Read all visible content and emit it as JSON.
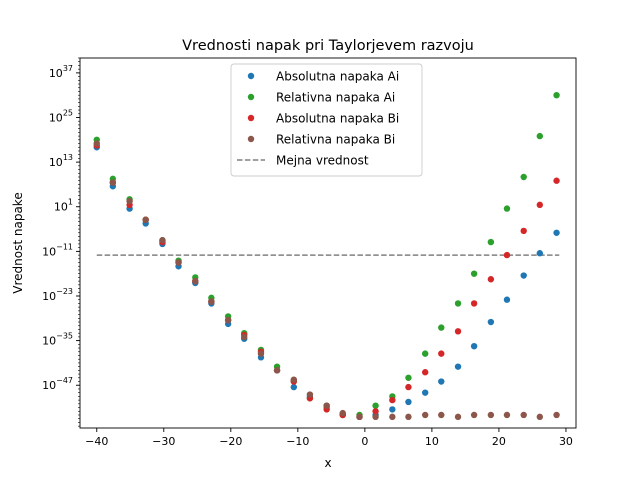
{
  "chart_data": {
    "type": "scatter",
    "title": "Vrednosti napak pri Taylorjevem razvoju",
    "xlabel": "x",
    "ylabel": "Vrednost napake",
    "yscale": "log",
    "xlim": [
      -42.5,
      31.5
    ],
    "ylim_exp": [
      -58.5,
      41
    ],
    "x_ticks": [
      -40,
      -30,
      -20,
      -10,
      0,
      10,
      20,
      30
    ],
    "y_ticks": [
      {
        "exp": -47,
        "label": "10",
        "sup": "−47"
      },
      {
        "exp": -35,
        "label": "10",
        "sup": "−35"
      },
      {
        "exp": -23,
        "label": "10",
        "sup": "−23"
      },
      {
        "exp": -11,
        "label": "10",
        "sup": "−11"
      },
      {
        "exp": 1,
        "label": "10",
        "sup": "1"
      },
      {
        "exp": 13,
        "label": "10",
        "sup": "13"
      },
      {
        "exp": 25,
        "label": "10",
        "sup": "25"
      },
      {
        "exp": 37,
        "label": "10",
        "sup": "37"
      }
    ],
    "grid": false,
    "legend_position": "top-center",
    "x": [
      -40,
      -37.6,
      -35.1,
      -32.7,
      -30.2,
      -27.8,
      -25.3,
      -22.9,
      -20.4,
      -18.0,
      -15.5,
      -13.1,
      -10.6,
      -8.2,
      -5.7,
      -3.3,
      -0.8,
      1.6,
      4.1,
      6.5,
      9.0,
      11.4,
      13.9,
      16.3,
      18.8,
      21.2,
      23.7,
      26.1,
      28.6
    ],
    "series": [
      {
        "name": "Absolutna napaka Ai",
        "color": "#1f77b4",
        "values": [
          17,
          6.5,
          0.5,
          -3.5,
          -9,
          -15,
          -19.5,
          -25,
          -30.5,
          -34.5,
          -39.5,
          -43,
          -47.5,
          -50,
          -52.5,
          -55,
          -55.5,
          -55,
          -53.5,
          -51.5,
          -49,
          -46,
          -42,
          -36.5,
          -30,
          -24,
          -17.5,
          -11.5,
          -6
        ]
      },
      {
        "name": "Relativna napaka Ai",
        "color": "#2ca02c",
        "values": [
          19,
          8.5,
          3,
          -2.5,
          -8,
          -13.5,
          -18,
          -23.5,
          -28.5,
          -33,
          -37.5,
          -42,
          -46,
          -50.5,
          -53,
          -55,
          -55,
          -52.5,
          -50,
          -45,
          -38.5,
          -31.5,
          -25,
          -17,
          -8.5,
          0.5,
          9,
          20,
          31
        ]
      },
      {
        "name": "Absolutna napaka Bi",
        "color": "#d62728",
        "values": [
          17.5,
          7.5,
          1.5,
          -2.5,
          -8.5,
          -14,
          -19,
          -24.5,
          -29.5,
          -33.5,
          -38,
          -43,
          -46,
          -50.5,
          -53.5,
          -55,
          -55.5,
          -54,
          -51,
          -47.5,
          -43.5,
          -38.5,
          -32.5,
          -25,
          -18.5,
          -12,
          -5.5,
          1.5,
          8
        ]
      },
      {
        "name": "Relativna napaka Bi",
        "color": "#8c564b",
        "values": [
          18,
          7.5,
          2.5,
          -2.5,
          -8,
          -14,
          -19,
          -24.5,
          -29.5,
          -34,
          -38.5,
          -43,
          -45.5,
          -49.5,
          -52.5,
          -54.5,
          -55.5,
          -55.5,
          -55.5,
          -55.5,
          -55,
          -55,
          -55.5,
          -55,
          -55,
          -55,
          -55,
          -55.5,
          -55
        ]
      }
    ],
    "threshold": {
      "name": "Mejna vrednost",
      "color": "#808080",
      "exp": -12,
      "x_range": [
        -40,
        29
      ]
    }
  }
}
